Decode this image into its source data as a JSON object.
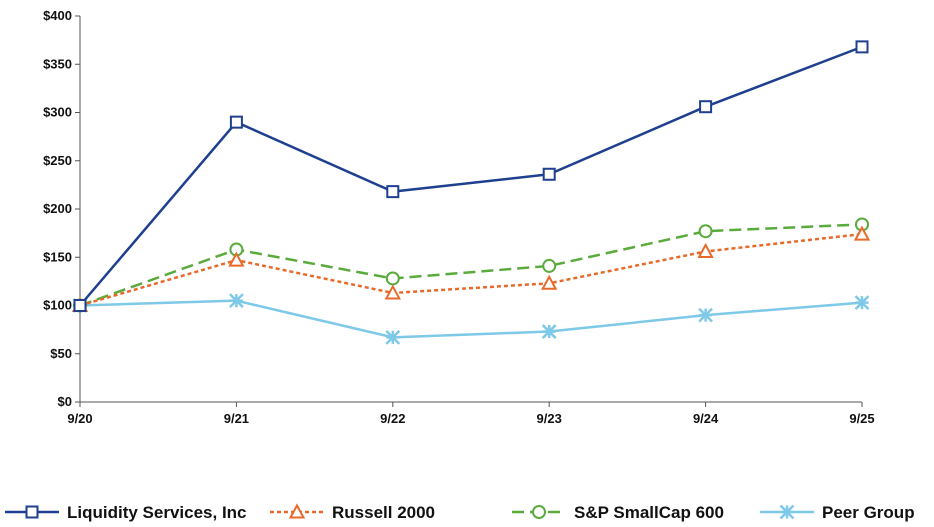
{
  "chart_data": {
    "type": "line",
    "title": "",
    "xlabel": "",
    "ylabel": "",
    "categories": [
      "9/20",
      "9/21",
      "9/22",
      "9/23",
      "9/24",
      "9/25"
    ],
    "y_ticks": [
      "$0",
      "$50",
      "$100",
      "$150",
      "$200",
      "$250",
      "$300",
      "$350",
      "$400"
    ],
    "ylim": [
      0,
      400
    ],
    "grid": false,
    "legend_position": "bottom",
    "series": [
      {
        "name": "Liquidity Services, Inc",
        "values": [
          100,
          290,
          218,
          236,
          306,
          368
        ],
        "color": "#1f3f8f",
        "marker": "square",
        "dash": "solid"
      },
      {
        "name": "Russell 2000",
        "values": [
          100,
          147,
          113,
          123,
          156,
          174
        ],
        "color": "#e86a2a",
        "marker": "triangle",
        "dash": "dotted"
      },
      {
        "name": "S&P SmallCap 600",
        "values": [
          100,
          158,
          128,
          141,
          177,
          184
        ],
        "color": "#5aaa3c",
        "marker": "circle",
        "dash": "dashed"
      },
      {
        "name": "Peer Group",
        "values": [
          100,
          105,
          67,
          73,
          90,
          103
        ],
        "color": "#7ec8e8",
        "marker": "star",
        "dash": "solid"
      }
    ]
  }
}
